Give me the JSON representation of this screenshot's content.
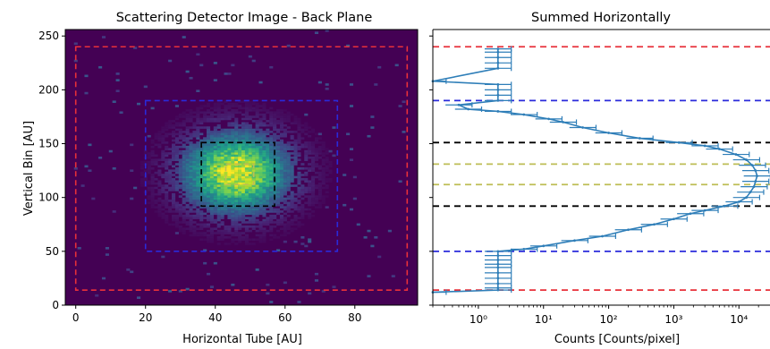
{
  "chart_data": [
    {
      "type": "heatmap",
      "title": "Scattering Detector Image - Back Plane",
      "xlabel": "Horizontal Tube [AU]",
      "ylabel": "Vertical Bin [AU]",
      "xlim": [
        -3,
        98
      ],
      "ylim": [
        0,
        256
      ],
      "xticks": [
        0,
        20,
        40,
        60,
        80
      ],
      "yticks": [
        0,
        50,
        100,
        150,
        200,
        250
      ],
      "colormap": "viridis",
      "hotspot": {
        "x": 46,
        "y": 122,
        "sigma_x": 9,
        "sigma_y": 22
      },
      "rectangles": [
        {
          "color": "#e8303a",
          "x0": 0,
          "x1": 95,
          "y0": 14,
          "y1": 240
        },
        {
          "color": "#2a2adb",
          "x0": 20,
          "x1": 75,
          "y0": 50,
          "y1": 190
        },
        {
          "color": "#000000",
          "x0": 36,
          "x1": 57,
          "y0": 92,
          "y1": 151
        },
        {
          "color": "#bdbd55",
          "x0": 43,
          "x1": 51,
          "y0": 112,
          "y1": 131
        }
      ]
    },
    {
      "type": "line",
      "title": "Summed Horizontally",
      "xlabel": "Counts [Counts/pixel]",
      "ylabel": "",
      "xscale": "log",
      "xlim": [
        0.2,
        30000
      ],
      "ylim": [
        0,
        256
      ],
      "xticks": [
        1,
        10,
        100,
        1000,
        10000
      ],
      "xtick_labels": [
        "10⁰",
        "10¹",
        "10²",
        "10³",
        "10⁴"
      ],
      "series": [
        {
          "color": "#2e7eb8",
          "points": [
            [
              0.2,
              12
            ],
            [
              2,
              14
            ],
            [
              2,
              16
            ],
            [
              2,
              20
            ],
            [
              2,
              25
            ],
            [
              2,
              30
            ],
            [
              2,
              35
            ],
            [
              2,
              38
            ],
            [
              2,
              42
            ],
            [
              2,
              46
            ],
            [
              2,
              50
            ],
            [
              5,
              52
            ],
            [
              10,
              55
            ],
            [
              30,
              60
            ],
            [
              80,
              64
            ],
            [
              200,
              70
            ],
            [
              500,
              75
            ],
            [
              1000,
              80
            ],
            [
              1800,
              85
            ],
            [
              3000,
              88
            ],
            [
              6000,
              92
            ],
            [
              10000,
              96
            ],
            [
              13000,
              100
            ],
            [
              15000,
              105
            ],
            [
              17000,
              110
            ],
            [
              18000,
              115
            ],
            [
              19000,
              120
            ],
            [
              18000,
              125
            ],
            [
              16000,
              130
            ],
            [
              13000,
              135
            ],
            [
              9000,
              140
            ],
            [
              5000,
              145
            ],
            [
              3000,
              148
            ],
            [
              1200,
              151
            ],
            [
              300,
              155
            ],
            [
              100,
              160
            ],
            [
              40,
              165
            ],
            [
              20,
              170
            ],
            [
              12,
              173
            ],
            [
              5,
              177
            ],
            [
              2,
              180
            ],
            [
              0.7,
              182
            ],
            [
              0.5,
              186
            ],
            [
              2,
              190
            ],
            [
              2,
              195
            ],
            [
              2,
              200
            ],
            [
              2,
              205
            ],
            [
              0.2,
              208
            ],
            [
              2,
              220
            ],
            [
              2,
              225
            ],
            [
              2,
              230
            ],
            [
              2,
              235
            ],
            [
              2,
              238
            ]
          ]
        }
      ],
      "hlines": [
        {
          "y": 14,
          "color": "#e8303a"
        },
        {
          "y": 50,
          "color": "#2a2adb"
        },
        {
          "y": 92,
          "color": "#000000"
        },
        {
          "y": 112,
          "color": "#bdbd55"
        },
        {
          "y": 131,
          "color": "#bdbd55"
        },
        {
          "y": 151,
          "color": "#000000"
        },
        {
          "y": 190,
          "color": "#2a2adb"
        },
        {
          "y": 240,
          "color": "#e8303a"
        }
      ]
    }
  ]
}
